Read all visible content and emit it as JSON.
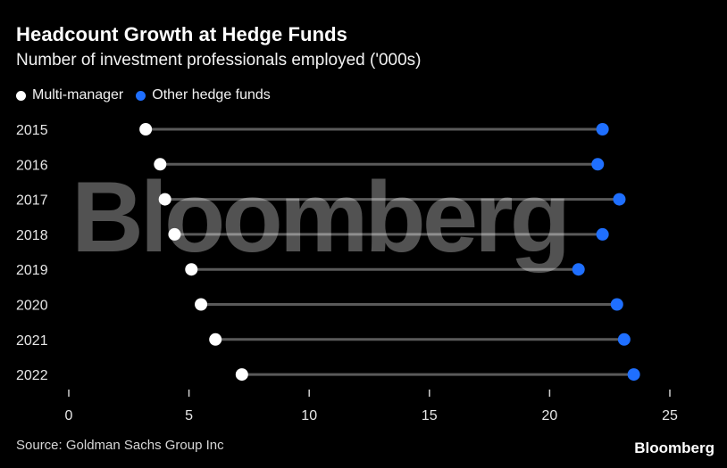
{
  "header": {
    "title": "Headcount Growth at Hedge Funds",
    "subtitle": "Number of investment professionals employed ('000s)"
  },
  "legend": {
    "multi_manager": "Multi-manager",
    "other": "Other hedge funds"
  },
  "footer": {
    "source": "Source: Goldman Sachs Group Inc",
    "brand": "Bloomberg"
  },
  "watermark": "Bloomberg",
  "colors": {
    "background": "#000000",
    "multi_manager": "#ffffff",
    "other": "#1f6fff",
    "connector": "#5a5a5a"
  },
  "chart_data": {
    "type": "scatter",
    "subtype": "dumbbell",
    "title": "Headcount Growth at Hedge Funds",
    "subtitle": "Number of investment professionals employed ('000s)",
    "categories": [
      "2015",
      "2016",
      "2017",
      "2018",
      "2019",
      "2020",
      "2021",
      "2022"
    ],
    "series": [
      {
        "name": "Multi-manager",
        "color": "#ffffff",
        "values": [
          3.2,
          3.8,
          4.0,
          4.4,
          5.1,
          5.5,
          6.1,
          7.2
        ]
      },
      {
        "name": "Other hedge funds",
        "color": "#1f6fff",
        "values": [
          22.2,
          22.0,
          22.9,
          22.2,
          21.2,
          22.8,
          23.1,
          23.5
        ]
      }
    ],
    "xlim": [
      0,
      25
    ],
    "xticks": [
      0,
      5,
      10,
      15,
      20,
      25
    ],
    "grid": false,
    "legend_position": "top-left"
  }
}
